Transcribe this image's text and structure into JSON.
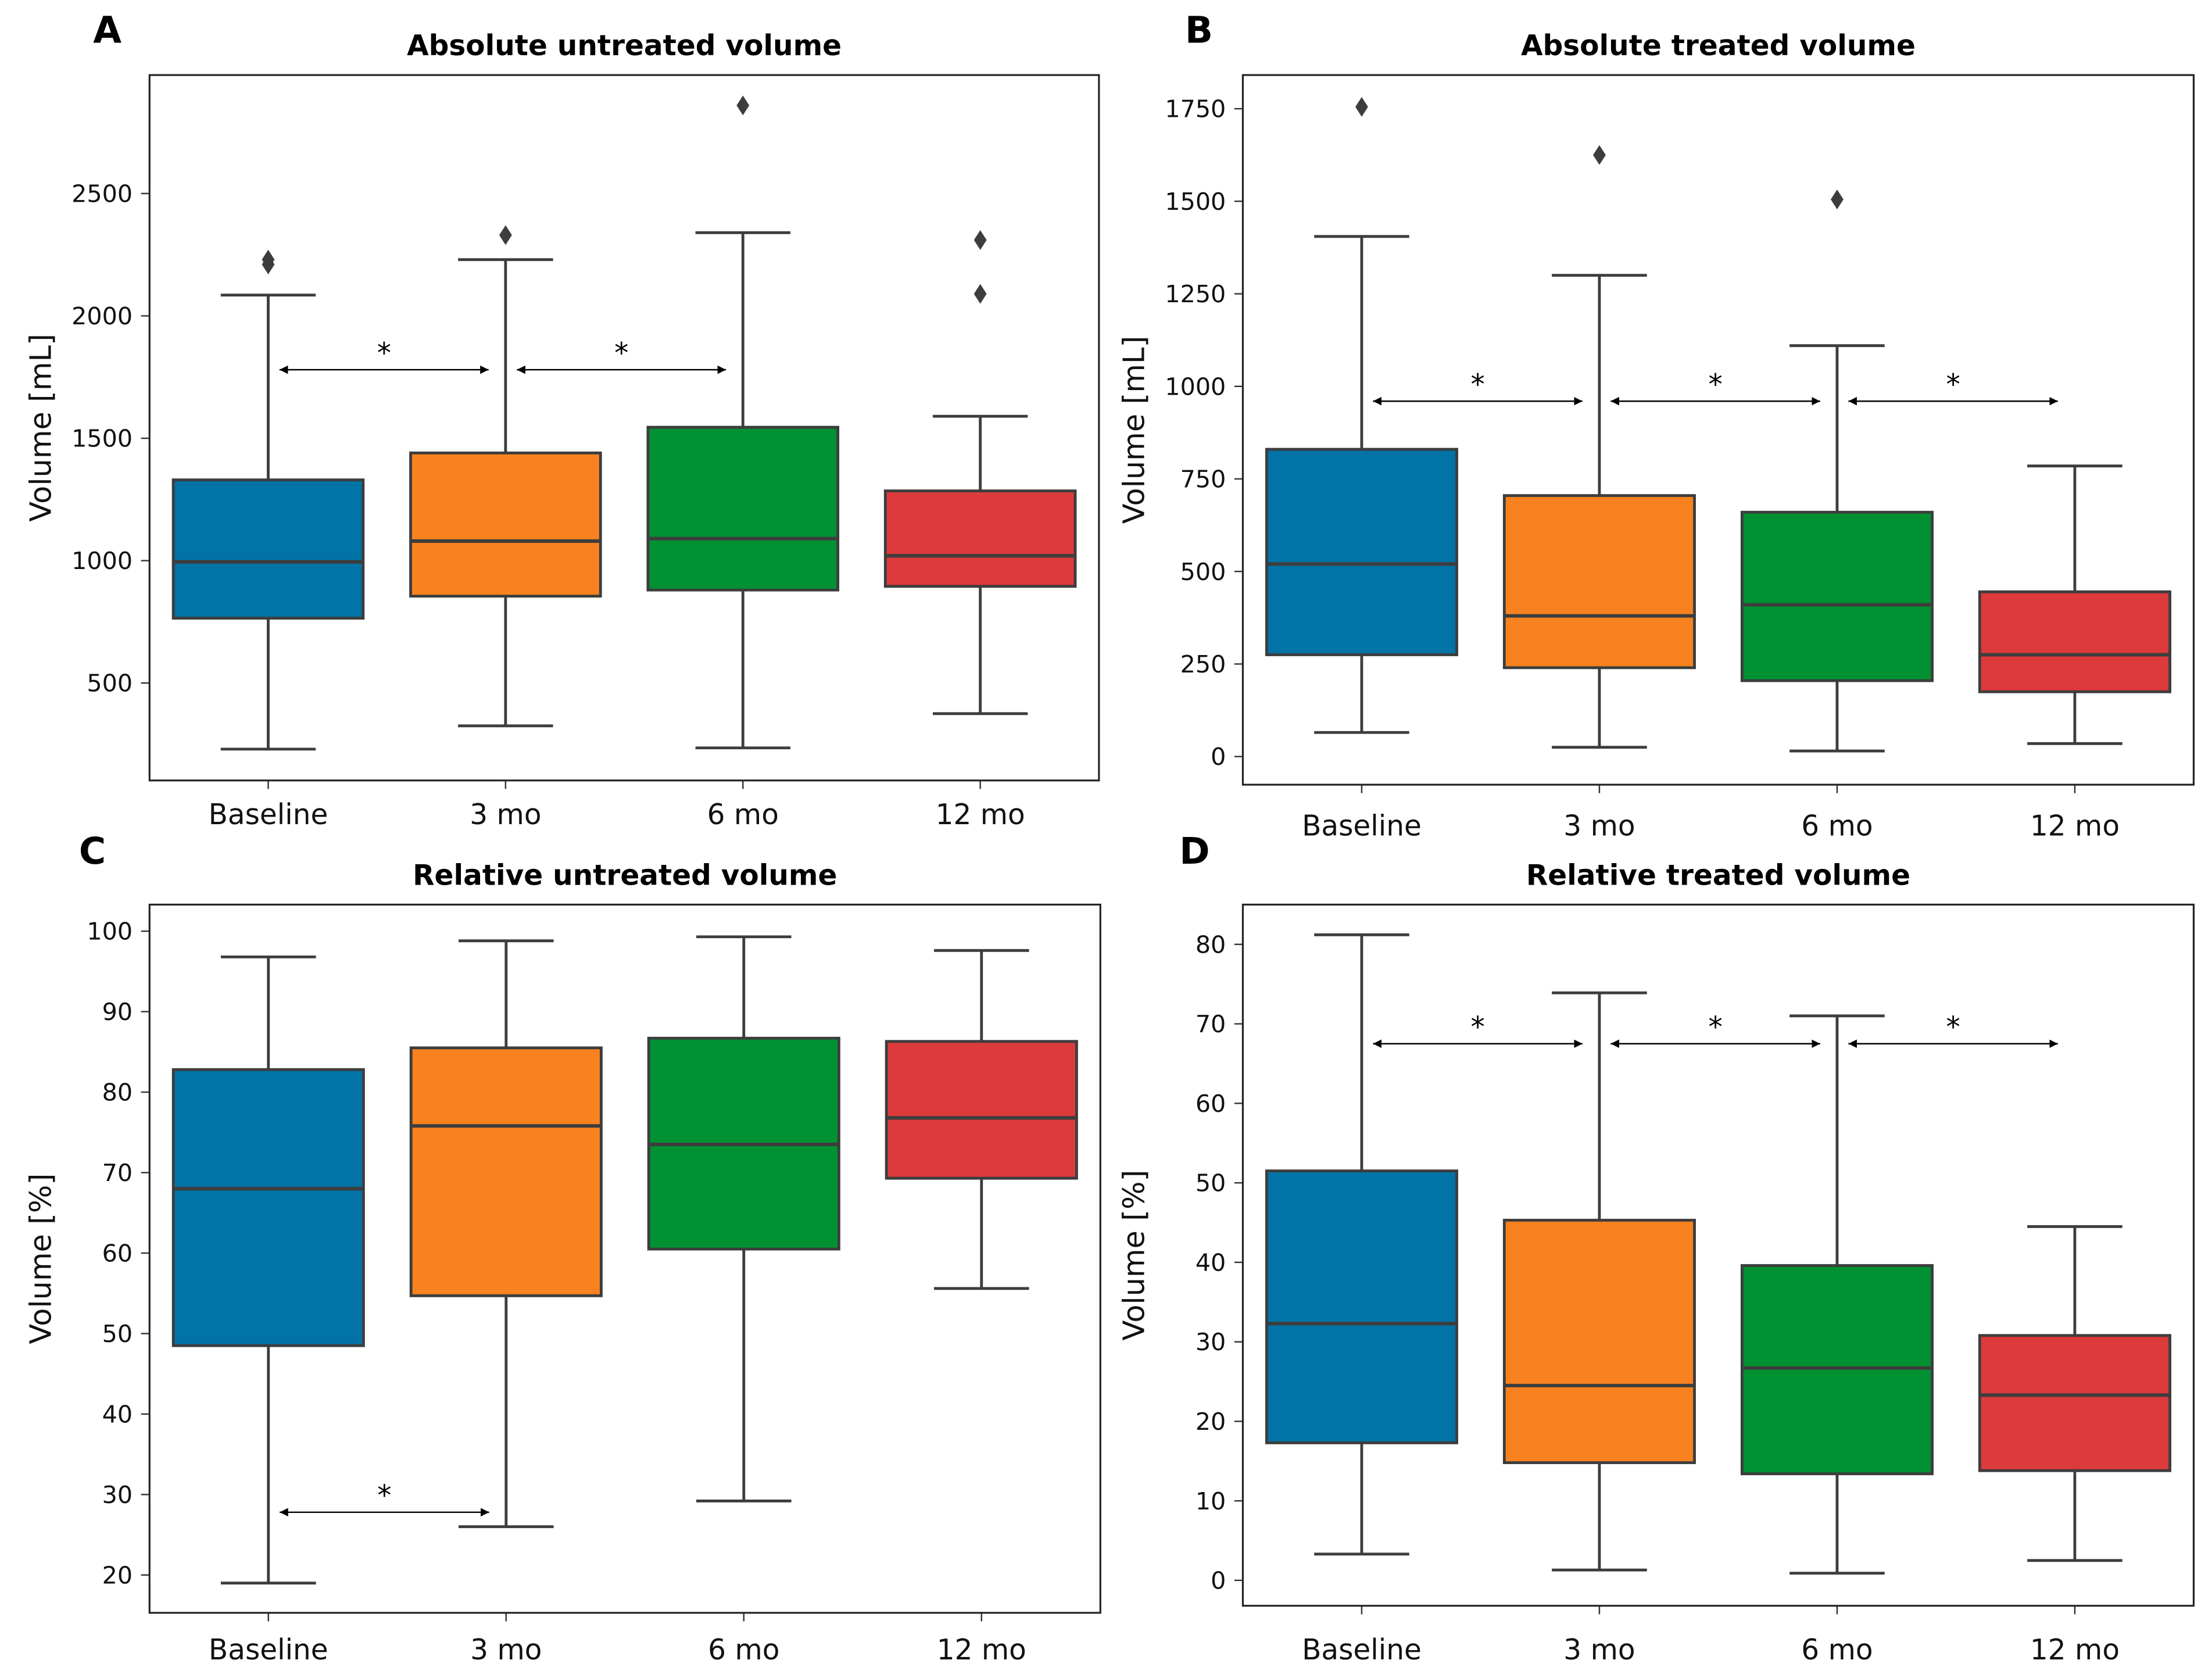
{
  "colors": [
    "#0173a6",
    "#f8821f",
    "#009232",
    "#dd3a3c"
  ],
  "chart_data": [
    {
      "panel": "A",
      "type": "box",
      "title": "Absolute untreated volume",
      "ylabel": "Volume [mL]",
      "categories": [
        "Baseline",
        "3 mo",
        "6 mo",
        "12 mo"
      ],
      "ylim": [
        102,
        2984
      ],
      "yticks": [
        500,
        1000,
        1500,
        2000,
        2500
      ],
      "boxes": [
        {
          "whislo": 230,
          "q1": 765,
          "med": 995,
          "q3": 1330,
          "whishi": 2085,
          "fliers": [
            2210,
            2230
          ]
        },
        {
          "whislo": 325,
          "q1": 855,
          "med": 1080,
          "q3": 1440,
          "whishi": 2230,
          "fliers": [
            2330
          ]
        },
        {
          "whislo": 235,
          "q1": 880,
          "med": 1090,
          "q3": 1545,
          "whishi": 2340,
          "fliers": [
            2860
          ]
        },
        {
          "whislo": 375,
          "q1": 895,
          "med": 1020,
          "q3": 1285,
          "whishi": 1590,
          "fliers": [
            2090,
            2310
          ]
        }
      ],
      "significance": [
        {
          "from": 0,
          "to": 1,
          "y": 1780,
          "label": "*"
        },
        {
          "from": 1,
          "to": 2,
          "y": 1780,
          "label": "*"
        }
      ]
    },
    {
      "panel": "B",
      "type": "box",
      "title": "Absolute treated volume",
      "ylabel": "Volume [mL]",
      "categories": [
        "Baseline",
        "3 mo",
        "6 mo",
        "12 mo"
      ],
      "ylim": [
        -76,
        1841
      ],
      "yticks": [
        0,
        250,
        500,
        750,
        1000,
        1250,
        1500,
        1750
      ],
      "boxes": [
        {
          "whislo": 65,
          "q1": 275,
          "med": 520,
          "q3": 830,
          "whishi": 1405,
          "fliers": [
            1755
          ]
        },
        {
          "whislo": 25,
          "q1": 240,
          "med": 380,
          "q3": 705,
          "whishi": 1300,
          "fliers": [
            1625
          ]
        },
        {
          "whislo": 15,
          "q1": 205,
          "med": 410,
          "q3": 660,
          "whishi": 1110,
          "fliers": [
            1505
          ]
        },
        {
          "whislo": 35,
          "q1": 175,
          "med": 275,
          "q3": 445,
          "whishi": 785,
          "fliers": []
        }
      ],
      "significance": [
        {
          "from": 0,
          "to": 1,
          "y": 960,
          "label": "*"
        },
        {
          "from": 1,
          "to": 2,
          "y": 960,
          "label": "*"
        },
        {
          "from": 2,
          "to": 3,
          "y": 960,
          "label": "*"
        }
      ]
    },
    {
      "panel": "C",
      "type": "box",
      "title": "Relative untreated volume",
      "ylabel": "Volume [%]",
      "categories": [
        "Baseline",
        "3 mo",
        "6 mo",
        "12 mo"
      ],
      "ylim": [
        15.3,
        103.3
      ],
      "yticks": [
        20,
        30,
        40,
        50,
        60,
        70,
        80,
        90,
        100
      ],
      "boxes": [
        {
          "whislo": 19,
          "q1": 48.5,
          "med": 68,
          "q3": 82.8,
          "whishi": 96.8,
          "fliers": []
        },
        {
          "whislo": 26,
          "q1": 54.7,
          "med": 75.8,
          "q3": 85.5,
          "whishi": 98.8,
          "fliers": []
        },
        {
          "whislo": 29.2,
          "q1": 60.5,
          "med": 73.5,
          "q3": 86.7,
          "whishi": 99.3,
          "fliers": []
        },
        {
          "whislo": 55.6,
          "q1": 69.3,
          "med": 76.8,
          "q3": 86.3,
          "whishi": 97.6,
          "fliers": []
        }
      ],
      "significance": [
        {
          "from": 0,
          "to": 1,
          "y": 27.8,
          "label": "*"
        }
      ]
    },
    {
      "panel": "D",
      "type": "box",
      "title": "Relative treated volume",
      "ylabel": "Volume [%]",
      "categories": [
        "Baseline",
        "3 mo",
        "6 mo",
        "12 mo"
      ],
      "ylim": [
        -3.2,
        85
      ],
      "yticks": [
        0,
        10,
        20,
        30,
        40,
        50,
        60,
        70,
        80
      ],
      "boxes": [
        {
          "whislo": 3.3,
          "q1": 17.3,
          "med": 32.3,
          "q3": 51.5,
          "whishi": 81.2,
          "fliers": []
        },
        {
          "whislo": 1.3,
          "q1": 14.8,
          "med": 24.5,
          "q3": 45.3,
          "whishi": 73.9,
          "fliers": []
        },
        {
          "whislo": 0.9,
          "q1": 13.4,
          "med": 26.7,
          "q3": 39.6,
          "whishi": 71.0,
          "fliers": []
        },
        {
          "whislo": 2.5,
          "q1": 13.8,
          "med": 23.3,
          "q3": 30.8,
          "whishi": 44.5,
          "fliers": []
        }
      ],
      "significance": [
        {
          "from": 0,
          "to": 1,
          "y": 67.5,
          "label": "*"
        },
        {
          "from": 1,
          "to": 2,
          "y": 67.5,
          "label": "*"
        },
        {
          "from": 2,
          "to": 3,
          "y": 67.5,
          "label": "*"
        }
      ]
    }
  ]
}
